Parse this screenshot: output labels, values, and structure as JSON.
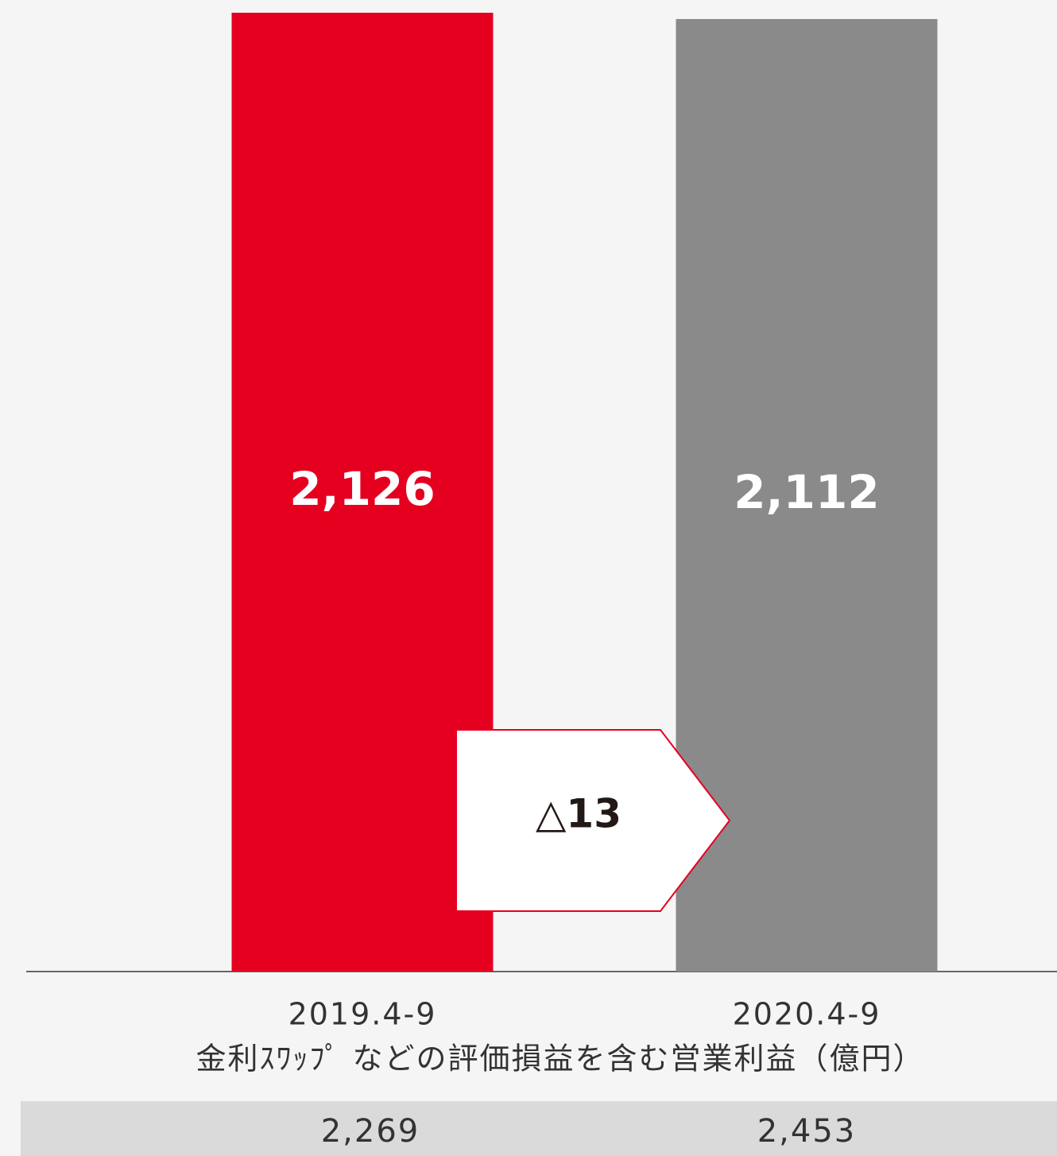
{
  "chart_data": {
    "type": "bar",
    "categories": [
      "2019.4-9",
      "2020.4-9"
    ],
    "values": [
      2126,
      2112
    ],
    "value_labels": [
      "2,126",
      "2,112"
    ],
    "colors": [
      "#e60020",
      "#8a8a8a"
    ],
    "ylim": [
      0,
      2126
    ],
    "annotation": "△13",
    "axis_caption": "金利ｽﾜｯﾌﾟ などの評価損益を含む営業利益（億円）",
    "footer_values": [
      "2,269",
      "2,453"
    ]
  }
}
